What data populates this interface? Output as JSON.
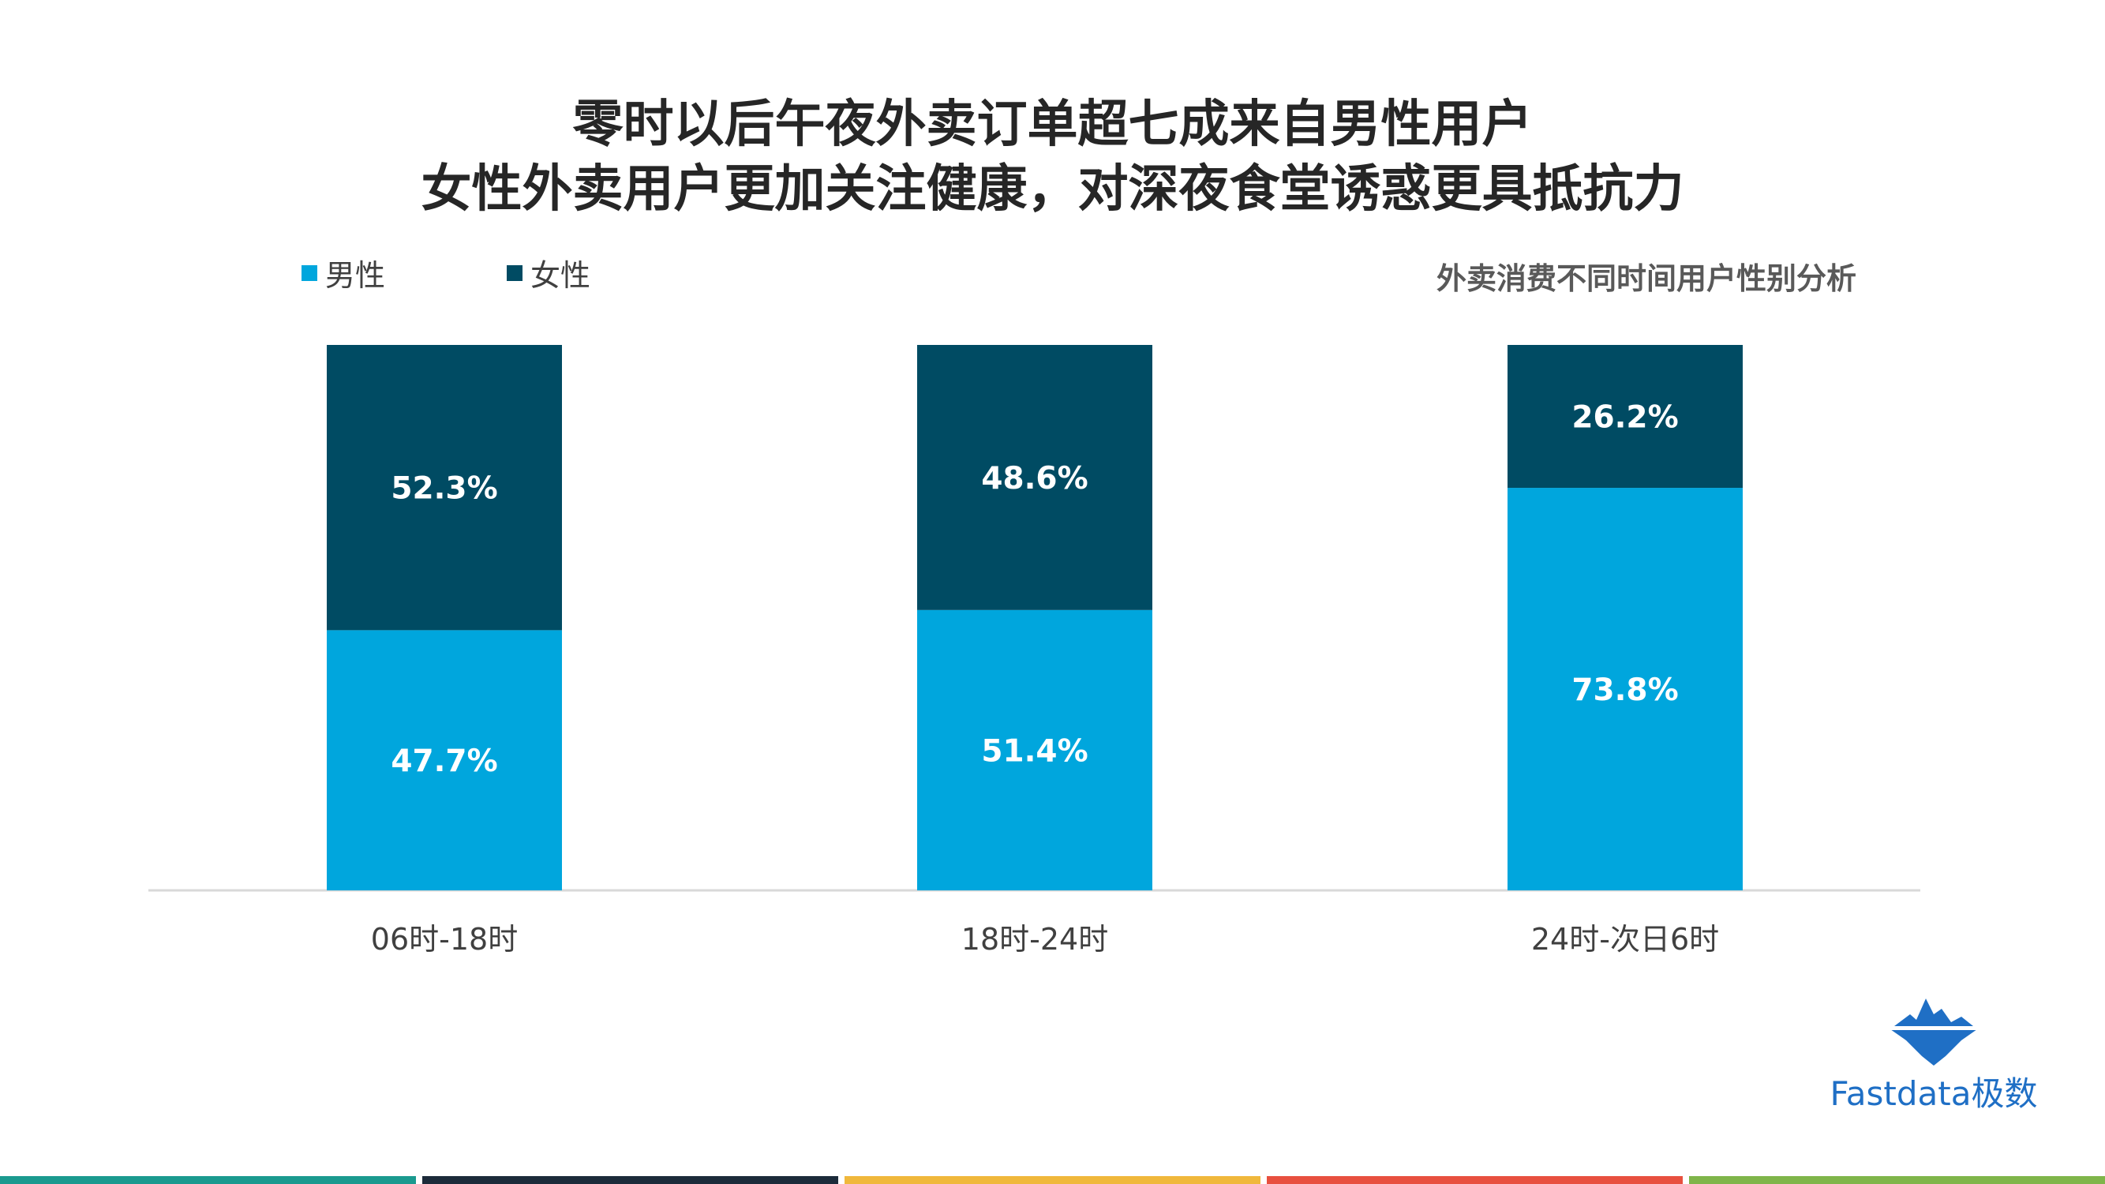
{
  "title": {
    "line1": "零时以后午夜外卖订单超七成来自男性用户",
    "line2": "女性外卖用户更加关注健康，对深夜食堂诱惑更具抵抗力"
  },
  "chart_data": {
    "type": "bar",
    "stacked": true,
    "subtitle": "外卖消费不同时间用户性别分析",
    "categories": [
      "06时-18时",
      "18时-24时",
      "24时-次日6时"
    ],
    "series": [
      {
        "name": "男性",
        "values": [
          47.7,
          51.4,
          73.8
        ],
        "labels": [
          "47.7%",
          "51.4%",
          "73.8%"
        ],
        "color": "#00a6dd"
      },
      {
        "name": "女性",
        "values": [
          52.3,
          48.6,
          26.2
        ],
        "labels": [
          "52.3%",
          "48.6%",
          "26.2%"
        ],
        "color": "#004b63"
      }
    ],
    "ylim": [
      0,
      100
    ],
    "legend": "top-left",
    "grid": false
  },
  "logo": {
    "text": "Fastdata极数",
    "color": "#1f6fc5"
  },
  "footer_colors": [
    "#1a9a8f",
    "#1c2b3a",
    "#f0b83c",
    "#e8503f",
    "#7fb54a"
  ]
}
